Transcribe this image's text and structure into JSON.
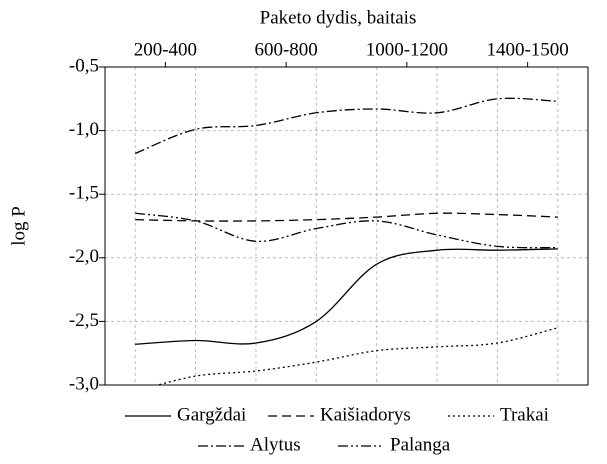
{
  "chart_data": {
    "type": "line",
    "xlabel": "Paketo dydis, baitais",
    "ylabel": "log P",
    "x": [
      0,
      1,
      2,
      3,
      4,
      5,
      6,
      7
    ],
    "xlim": [
      -0.5,
      7.5
    ],
    "xticks": [
      {
        "value": 0.5,
        "label": "200-400"
      },
      {
        "value": 2.5,
        "label": "600-800"
      },
      {
        "value": 4.5,
        "label": "1000-1200"
      },
      {
        "value": 6.5,
        "label": "1400-1500"
      }
    ],
    "ylim": [
      -3.0,
      -0.5
    ],
    "yticks": [
      {
        "value": -3.0,
        "label": "-3,0"
      },
      {
        "value": -2.5,
        "label": "-2,5"
      },
      {
        "value": -2.0,
        "label": "-2,0"
      },
      {
        "value": -1.5,
        "label": "-1,5"
      },
      {
        "value": -1.0,
        "label": "-1,0"
      },
      {
        "value": -0.5,
        "label": "-0,5"
      }
    ],
    "grid": true,
    "series": [
      {
        "name": "Gargždai",
        "color": "#000000",
        "line_style": "solid",
        "values": [
          -2.68,
          -2.65,
          -2.67,
          -2.5,
          -2.05,
          -1.94,
          -1.94,
          -1.93
        ]
      },
      {
        "name": "Kaišiadorys",
        "color": "#000000",
        "line_style": "dash",
        "values": [
          -1.7,
          -1.71,
          -1.71,
          -1.7,
          -1.68,
          -1.65,
          -1.66,
          -1.68
        ]
      },
      {
        "name": "Trakai",
        "color": "#000000",
        "line_style": "dot",
        "values": [
          -3.05,
          -2.93,
          -2.89,
          -2.82,
          -2.73,
          -2.7,
          -2.67,
          -2.55
        ]
      },
      {
        "name": "Alytus",
        "color": "#000000",
        "line_style": "dashdot",
        "values": [
          -1.18,
          -0.99,
          -0.96,
          -0.86,
          -0.83,
          -0.86,
          -0.75,
          -0.77
        ]
      },
      {
        "name": "Palanga",
        "color": "#000000",
        "line_style": "dashdotdot",
        "values": [
          -1.65,
          -1.71,
          -1.87,
          -1.77,
          -1.71,
          -1.82,
          -1.91,
          -1.92
        ]
      }
    ]
  }
}
